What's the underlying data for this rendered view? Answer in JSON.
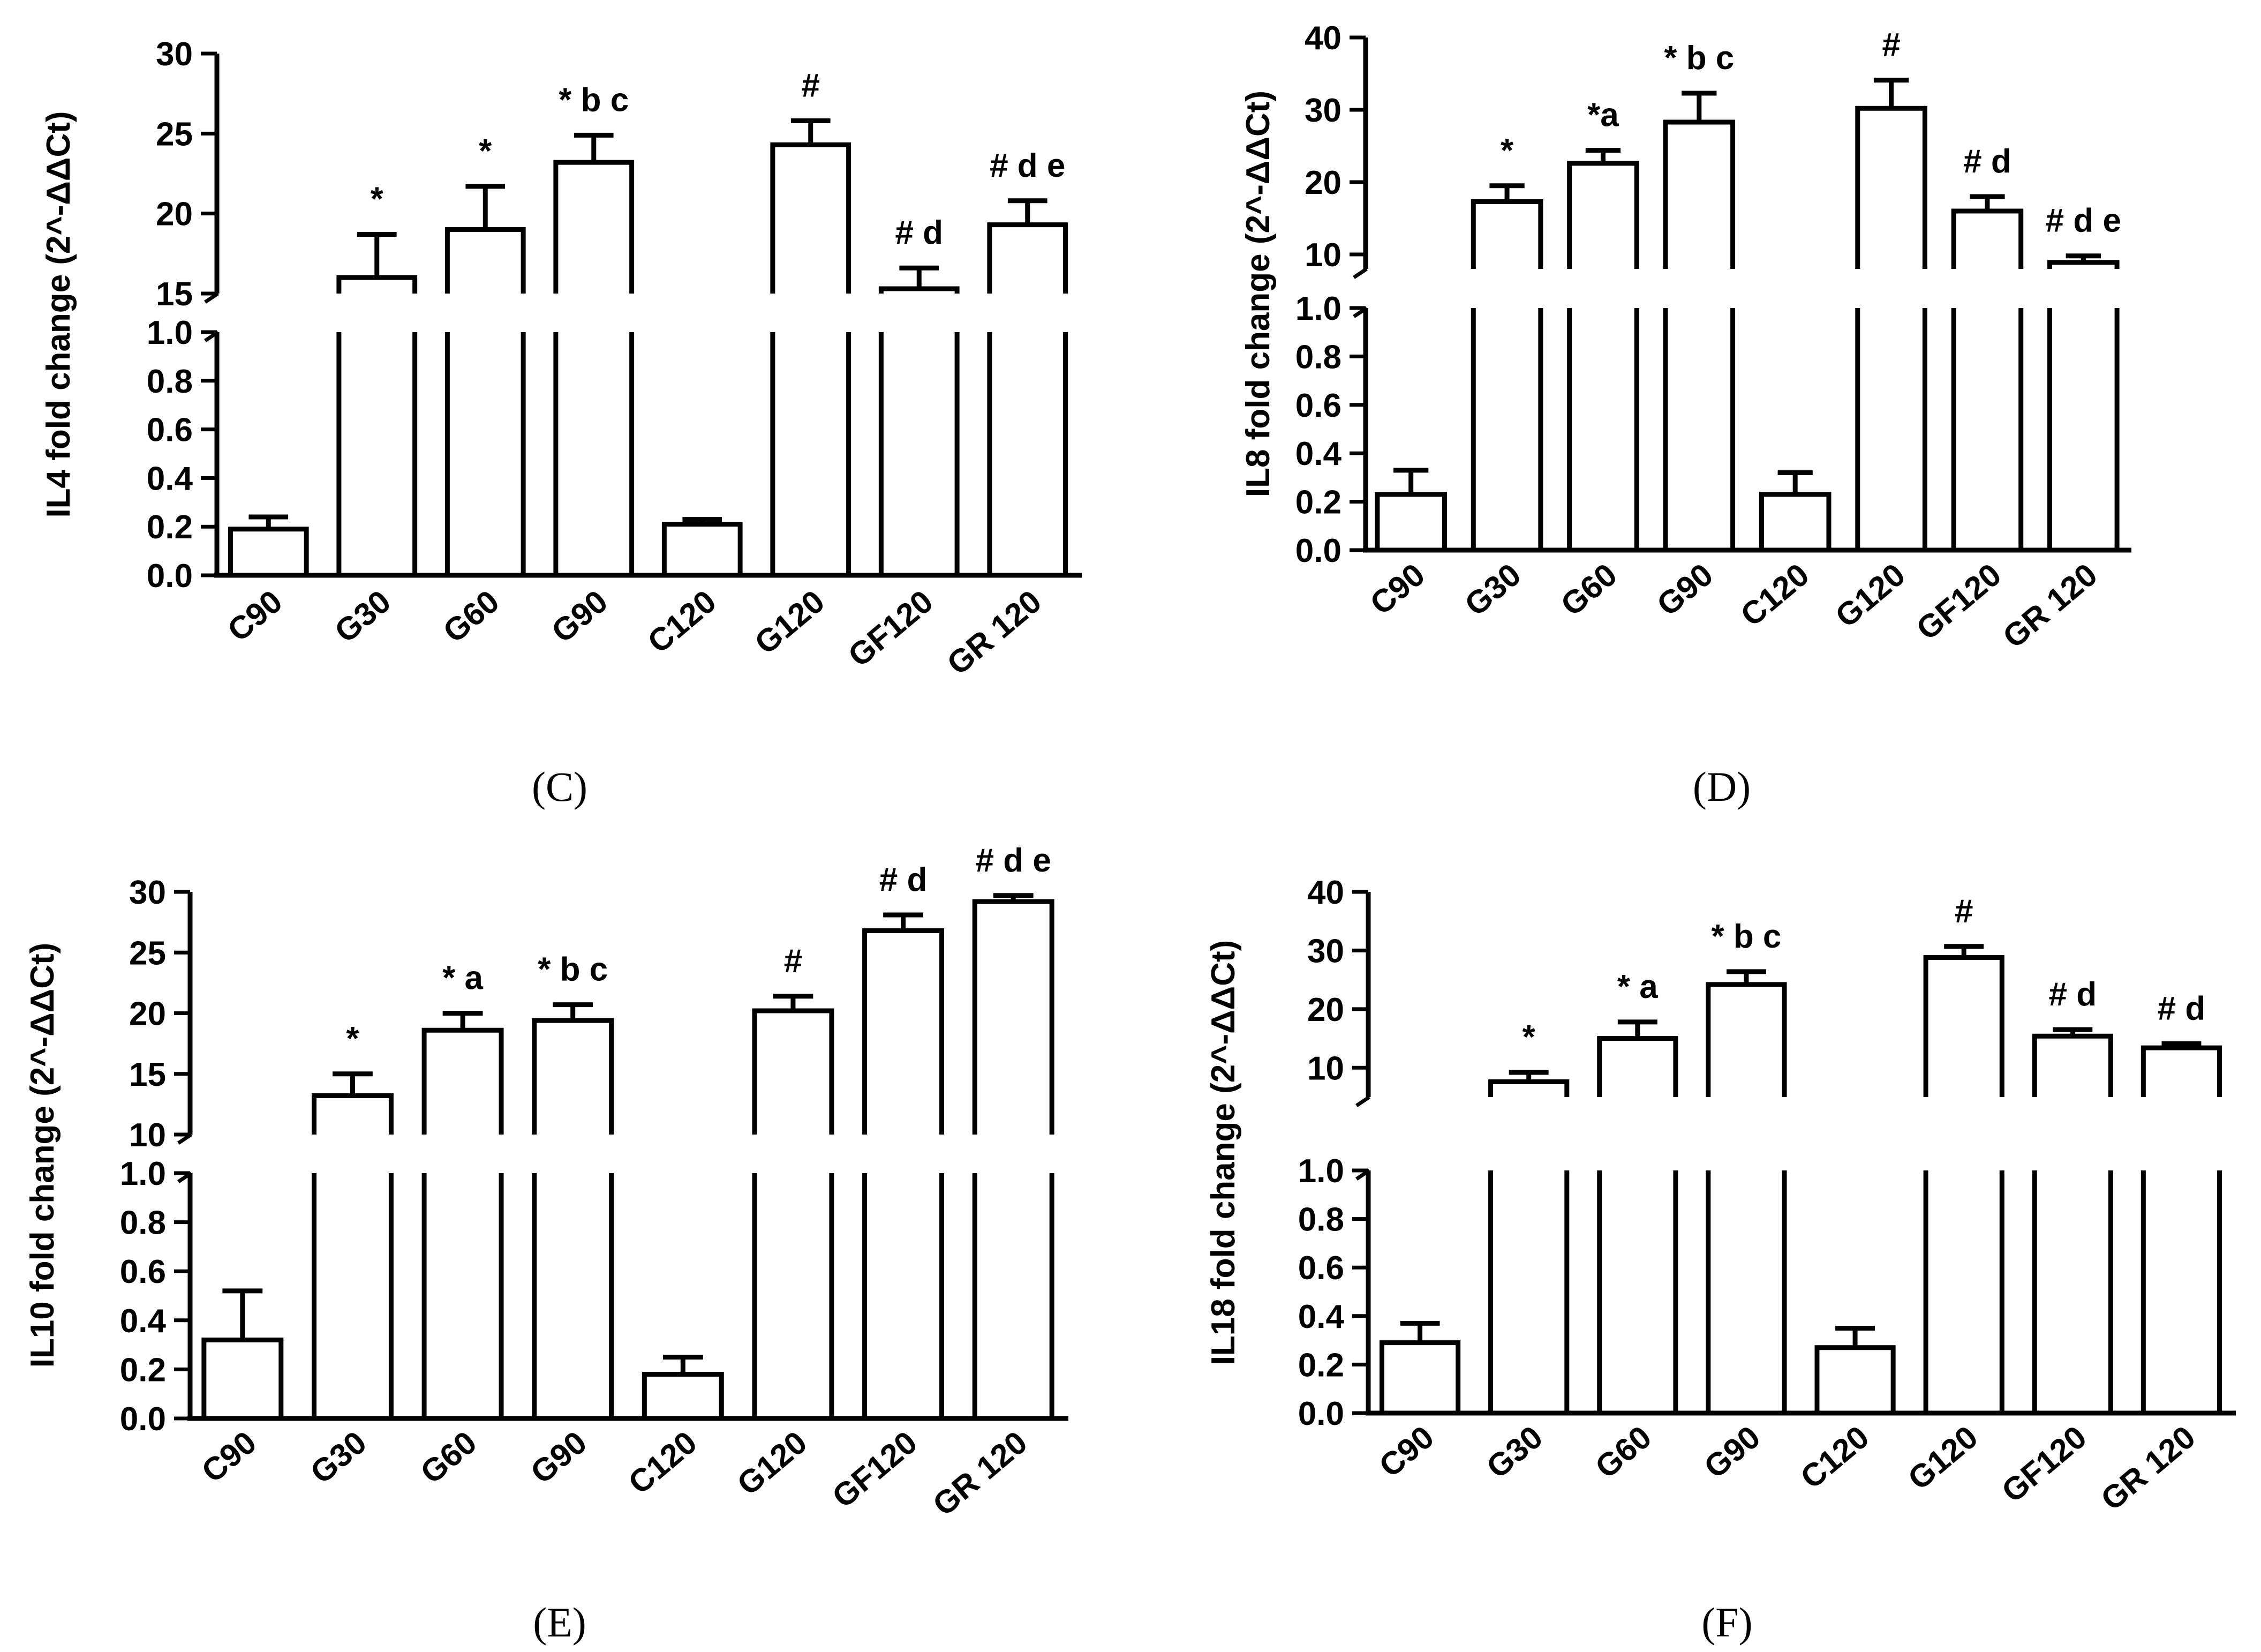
{
  "figure": {
    "panels": [
      "C",
      "D",
      "E",
      "F"
    ]
  },
  "chart_data": [
    {
      "panel": "C",
      "caption": "(C)",
      "type": "bar",
      "ylabel": "IL4 fold change (2^-ΔΔCt)",
      "categories": [
        "C90",
        "G30",
        "G60",
        "G90",
        "C120",
        "G120",
        "GF120",
        "GR 120"
      ],
      "values": [
        0.19,
        16.0,
        19.0,
        23.2,
        0.21,
        24.3,
        15.3,
        19.3
      ],
      "errors": [
        0.05,
        2.7,
        2.7,
        1.7,
        0.02,
        1.5,
        1.3,
        1.5
      ],
      "annotations": [
        "",
        "*",
        "*",
        "* b c",
        "",
        "#",
        "# d",
        "# d e"
      ],
      "broken_axis": {
        "upper": {
          "ylim": [
            15,
            30
          ],
          "ticks": [
            "15",
            "20",
            "25",
            "30"
          ]
        },
        "lower": {
          "ylim": [
            0,
            1.0
          ],
          "ticks": [
            "0.0",
            "0.2",
            "0.4",
            "0.6",
            "0.8",
            "1.0"
          ]
        }
      }
    },
    {
      "panel": "D",
      "caption": "(D)",
      "type": "bar",
      "ylabel": "IL8 fold change (2^-ΔΔCt)",
      "categories": [
        "C90",
        "G30",
        "G60",
        "G90",
        "C120",
        "G120",
        "GF120",
        "GR 120"
      ],
      "values": [
        0.23,
        17.3,
        22.6,
        28.3,
        0.23,
        30.2,
        16.0,
        8.9
      ],
      "errors": [
        0.1,
        2.2,
        1.8,
        4.0,
        0.09,
        3.9,
        2.0,
        0.9
      ],
      "annotations": [
        "",
        "*",
        "*a",
        "* b c",
        "",
        "#",
        "# d",
        "# d e"
      ],
      "broken_axis": {
        "upper": {
          "ylim": [
            8,
            40
          ],
          "ticks": [
            "10",
            "20",
            "30",
            "40"
          ]
        },
        "lower": {
          "ylim": [
            0,
            1.0
          ],
          "ticks": [
            "0.0",
            "0.2",
            "0.4",
            "0.6",
            "0.8",
            "1.0"
          ]
        }
      }
    },
    {
      "panel": "E",
      "caption": "(E)",
      "type": "bar",
      "ylabel": "IL10 fold change (2^-ΔΔCt)",
      "categories": [
        "C90",
        "G30",
        "G60",
        "G90",
        "C120",
        "G120",
        "GF120",
        "GR 120"
      ],
      "values": [
        0.32,
        13.2,
        18.6,
        19.4,
        0.18,
        20.2,
        26.8,
        29.2
      ],
      "errors": [
        0.2,
        1.8,
        1.4,
        1.3,
        0.07,
        1.2,
        1.3,
        0.5
      ],
      "annotations": [
        "",
        "*",
        "* a",
        "* b c",
        "",
        "#",
        "# d",
        "# d e"
      ],
      "broken_axis": {
        "upper": {
          "ylim": [
            10,
            30
          ],
          "ticks": [
            "10",
            "15",
            "20",
            "25",
            "30"
          ]
        },
        "lower": {
          "ylim": [
            0,
            1.0
          ],
          "ticks": [
            "0.0",
            "0.2",
            "0.4",
            "0.6",
            "0.8",
            "1.0"
          ]
        }
      }
    },
    {
      "panel": "F",
      "caption": "(F)",
      "type": "bar",
      "ylabel": "IL18 fold change (2^-ΔΔCt)",
      "categories": [
        "C90",
        "G30",
        "G60",
        "G90",
        "C120",
        "G120",
        "GF120",
        "GR 120"
      ],
      "values": [
        0.29,
        7.6,
        15.0,
        24.2,
        0.27,
        28.8,
        15.4,
        13.4
      ],
      "errors": [
        0.08,
        1.6,
        2.8,
        2.2,
        0.08,
        1.9,
        1.1,
        0.7
      ],
      "annotations": [
        "",
        "*",
        "* a",
        "* b c",
        "",
        "#",
        "# d",
        "# d"
      ],
      "broken_axis": {
        "upper": {
          "ylim": [
            5,
            40
          ],
          "ticks": [
            "10",
            "20",
            "30",
            "40"
          ]
        },
        "lower": {
          "ylim": [
            0,
            1.0
          ],
          "ticks": [
            "0.0",
            "0.2",
            "0.4",
            "0.6",
            "0.8",
            "1.0"
          ]
        }
      }
    }
  ]
}
